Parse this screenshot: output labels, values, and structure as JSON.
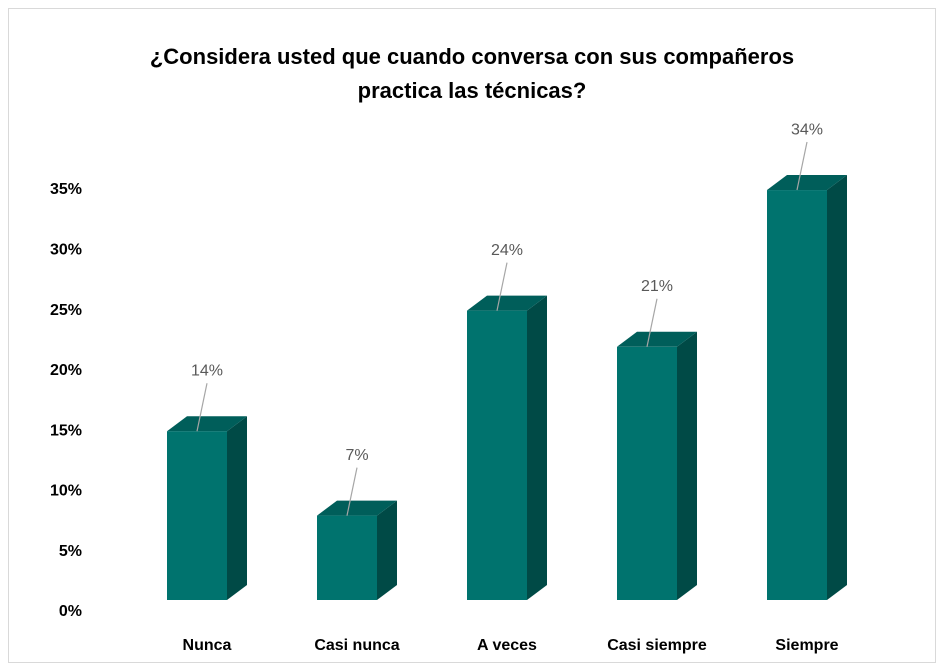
{
  "chart_data": {
    "type": "bar3d",
    "title": "¿Considera usted que cuando conversa con sus compañeros practica las técnicas?",
    "title_lines": [
      "¿Considera usted que cuando conversa con sus compañeros",
      "practica las técnicas?"
    ],
    "categories": [
      "Nunca",
      "Casi nunca",
      "A veces",
      "Casi siempre",
      "Siempre"
    ],
    "values": [
      14,
      7,
      24,
      21,
      34
    ],
    "value_labels": [
      "14%",
      "7%",
      "24%",
      "21%",
      "34%"
    ],
    "color": "#00736e",
    "ylim": [
      0,
      35
    ],
    "yticks": [
      {
        "value": 0,
        "label": "0%"
      },
      {
        "value": 5,
        "label": "5%"
      },
      {
        "value": 10,
        "label": "10%"
      },
      {
        "value": 15,
        "label": "15%"
      },
      {
        "value": 20,
        "label": "20%"
      },
      {
        "value": 25,
        "label": "25%"
      },
      {
        "value": 30,
        "label": "30%"
      },
      {
        "value": 35,
        "label": "35%"
      }
    ],
    "grid": false
  }
}
